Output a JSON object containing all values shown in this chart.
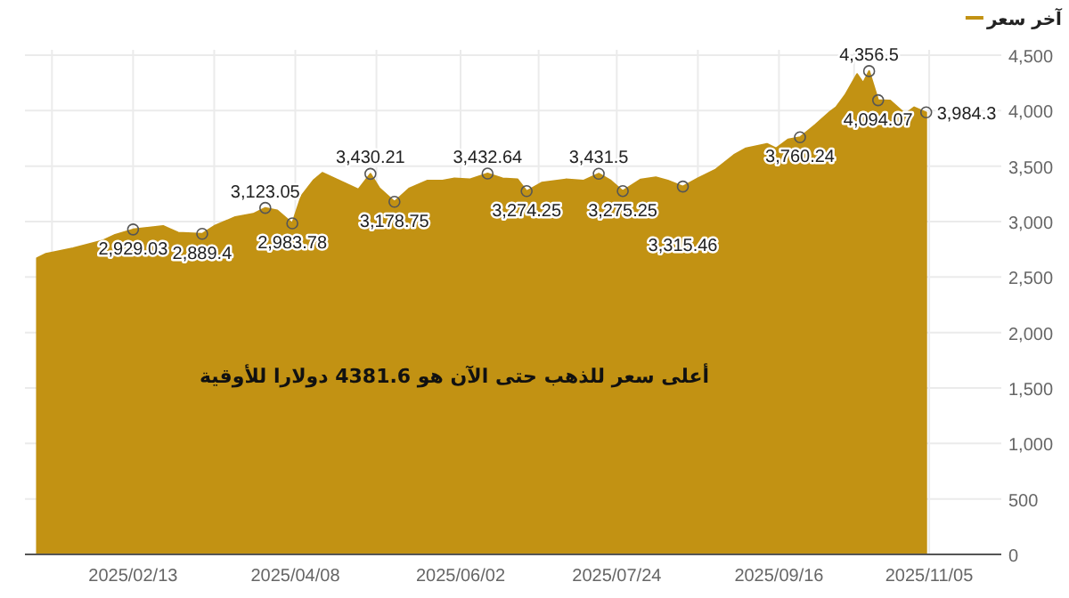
{
  "chart_data": {
    "type": "area",
    "legend": "top right",
    "grid": true,
    "x": [
      "2025-01-12",
      "2025-01-15",
      "2025-01-24",
      "2025-02-03",
      "2025-02-07",
      "2025-02-13",
      "2025-02-23",
      "2025-02-28",
      "2025-03-08",
      "2025-03-12",
      "2025-03-19",
      "2025-03-25",
      "2025-03-29",
      "2025-04-02",
      "2025-04-07",
      "2025-04-10",
      "2025-04-14",
      "2025-04-17",
      "2025-04-21",
      "2025-04-25",
      "2025-04-29",
      "2025-05-03",
      "2025-05-06",
      "2025-05-11",
      "2025-05-16",
      "2025-05-22",
      "2025-05-27",
      "2025-05-31",
      "2025-06-05",
      "2025-06-11",
      "2025-06-16",
      "2025-06-21",
      "2025-06-24",
      "2025-06-29",
      "2025-07-07",
      "2025-07-13",
      "2025-07-18",
      "2025-07-22",
      "2025-07-26",
      "2025-08-01",
      "2025-08-06",
      "2025-08-10",
      "2025-08-15",
      "2025-08-20",
      "2025-08-26",
      "2025-09-01",
      "2025-09-05",
      "2025-09-12",
      "2025-09-15",
      "2025-09-19",
      "2025-09-23",
      "2025-09-28",
      "2025-10-03",
      "2025-10-05",
      "2025-10-08",
      "2025-10-12",
      "2025-10-14",
      "2025-10-16",
      "2025-10-19",
      "2025-10-23",
      "2025-10-28",
      "2025-10-31",
      "2025-11-04"
    ],
    "series": [
      {
        "name": "آخر سعر",
        "color": "#c29213",
        "values": [
          2670,
          2710,
          2760,
          2830,
          2880,
          2929.03,
          2960,
          2900,
          2889.4,
          2960,
          3040,
          3070,
          3123.05,
          3100,
          2983.78,
          3230,
          3370,
          3440,
          3390,
          3340,
          3290,
          3430.21,
          3300,
          3178.75,
          3300,
          3370,
          3370,
          3390,
          3380,
          3432.64,
          3390,
          3380,
          3274.25,
          3350,
          3380,
          3370,
          3431.5,
          3370,
          3275.25,
          3380,
          3400,
          3370,
          3315.46,
          3390,
          3470,
          3600,
          3660,
          3700,
          3660,
          3740,
          3760.24,
          3870,
          3990,
          4030,
          4140,
          4330,
          4250,
          4356.5,
          4094.07,
          4090,
          3970,
          4030,
          3984.3
        ],
        "value_labels": [
          null,
          null,
          null,
          null,
          null,
          "2,929.03",
          null,
          null,
          "2,889.4",
          null,
          null,
          null,
          "3,123.05",
          null,
          "2,983.78",
          null,
          null,
          null,
          null,
          null,
          null,
          "3,430.21",
          null,
          "3,178.75",
          null,
          null,
          null,
          null,
          null,
          "3,432.64",
          null,
          null,
          "3,274.25",
          null,
          null,
          null,
          "3,431.5",
          null,
          "3,275.25",
          null,
          null,
          null,
          "3,315.46",
          null,
          null,
          null,
          null,
          null,
          null,
          null,
          "3,760.24",
          null,
          null,
          null,
          null,
          null,
          null,
          "4,356.5",
          "4,094.07",
          null,
          null,
          null,
          "3,984.3"
        ]
      }
    ],
    "xlim": [
      "2025-01-08",
      "2025-11-29"
    ],
    "xticks": [
      {
        "value": "2025-01-17",
        "label": null
      },
      {
        "value": "2025-02-13",
        "label": "2025/02/13"
      },
      {
        "value": "2025-03-12",
        "label": null
      },
      {
        "value": "2025-04-08",
        "label": "2025/04/08"
      },
      {
        "value": "2025-05-05",
        "label": null
      },
      {
        "value": "2025-06-02",
        "label": "2025/06/02"
      },
      {
        "value": "2025-06-28",
        "label": null
      },
      {
        "value": "2025-07-24",
        "label": "2025/07/24"
      },
      {
        "value": "2025-08-20",
        "label": null
      },
      {
        "value": "2025-09-16",
        "label": "2025/09/16"
      },
      {
        "value": "2025-10-11",
        "label": null
      },
      {
        "value": "2025-11-05",
        "label": "2025/11/05"
      }
    ],
    "ylim": [
      0,
      4500
    ],
    "yticks": [
      0,
      500,
      {
        "value": 1000,
        "label": "1,000"
      },
      {
        "value": 1500,
        "label": "1,500"
      },
      {
        "value": 2000,
        "label": "2,000"
      },
      {
        "value": 2500,
        "label": "2,500"
      },
      {
        "value": 3000,
        "label": "3,000"
      },
      {
        "value": 3500,
        "label": "3,500"
      },
      {
        "value": 4000,
        "label": "4,000"
      },
      {
        "value": 4500,
        "label": "4,500"
      }
    ],
    "annotations": [
      "أعلى سعر للذهب حتى الآن هو 4381.6 دولارا للأوقية"
    ]
  }
}
